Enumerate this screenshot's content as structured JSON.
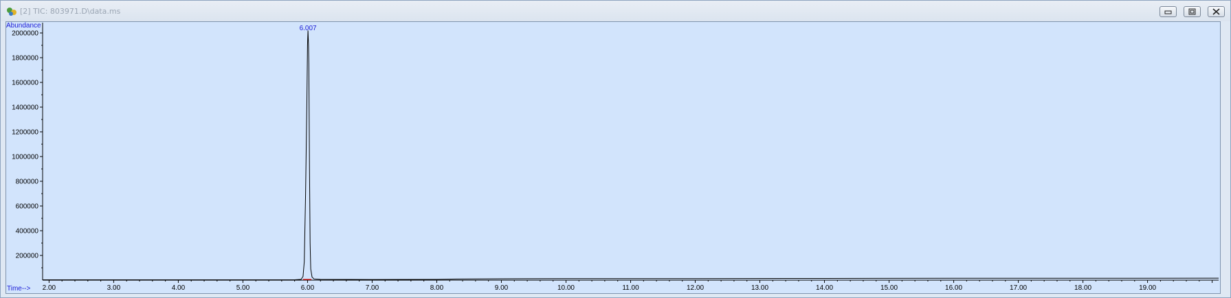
{
  "window": {
    "title": "[2] TIC: 803971.D\\data.ms",
    "icon": "chromatogram-app-icon",
    "buttons": [
      "minimize",
      "restore",
      "close"
    ]
  },
  "chart_data": {
    "type": "line",
    "title": "",
    "xlabel": "Time-->",
    "ylabel": "Abundance",
    "xlim": [
      1.9,
      20.1
    ],
    "ylim": [
      0,
      2050000
    ],
    "x_ticks": [
      "2.00",
      "3.00",
      "4.00",
      "5.00",
      "6.00",
      "7.00",
      "8.00",
      "9.00",
      "10.00",
      "11.00",
      "12.00",
      "13.00",
      "14.00",
      "15.00",
      "16.00",
      "17.00",
      "18.00",
      "19.00"
    ],
    "x_tick_values": [
      2,
      3,
      4,
      5,
      6,
      7,
      8,
      9,
      10,
      11,
      12,
      13,
      14,
      15,
      16,
      17,
      18,
      19
    ],
    "y_ticks": [
      "200000",
      "400000",
      "600000",
      "800000",
      "1000000",
      "1200000",
      "1400000",
      "1600000",
      "1800000",
      "2000000"
    ],
    "y_tick_values": [
      200000,
      400000,
      600000,
      800000,
      1000000,
      1200000,
      1400000,
      1600000,
      1800000,
      2000000
    ],
    "peak_labels": [
      {
        "x": 6.007,
        "text": "6.007"
      }
    ],
    "grid": false,
    "series": [
      {
        "color": "#000000",
        "x": [
          1.9,
          5.8,
          5.9,
          5.93,
          5.95,
          5.97,
          5.99,
          6.0,
          6.007,
          6.015,
          6.02,
          6.03,
          6.04,
          6.05,
          6.07,
          6.1,
          6.2,
          7.0,
          8.0,
          8.3,
          9.0,
          10.0,
          12.0,
          14.0,
          16.0,
          18.0,
          20.1
        ],
        "y": [
          3000,
          3000,
          6000,
          30000,
          150000,
          700000,
          1450000,
          1900000,
          2020000,
          1900000,
          1750000,
          900000,
          300000,
          90000,
          25000,
          10000,
          6000,
          5000,
          6000,
          9000,
          11000,
          12000,
          13000,
          14000,
          15000,
          15000,
          16000
        ]
      }
    ]
  }
}
